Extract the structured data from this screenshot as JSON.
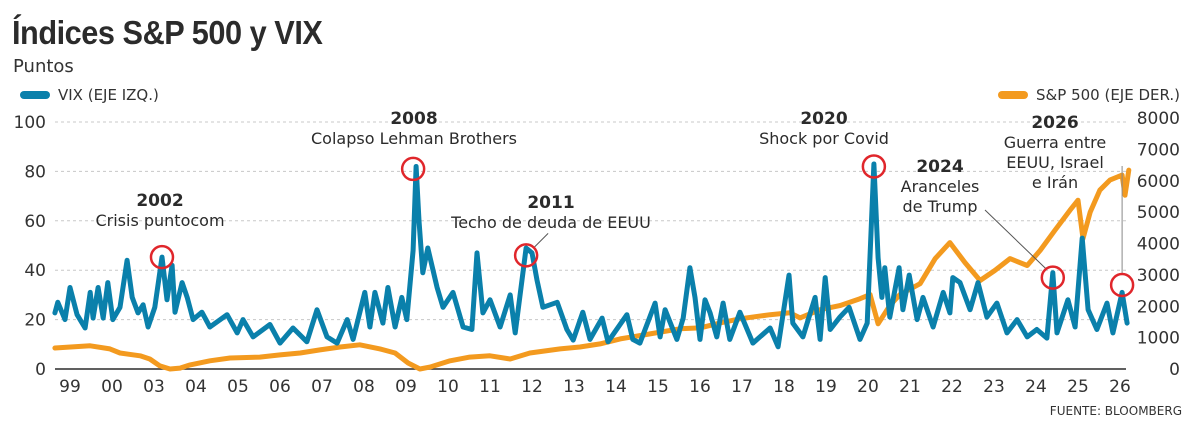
{
  "title": "Índices S&P 500 y VIX",
  "subtitle": "Puntos",
  "source": "FUENTE: BLOOMBERG",
  "colors": {
    "vix": "#0a80ab",
    "sp500": "#f39a1f",
    "highlight": "#e0262b",
    "grid": "#c8c8c8",
    "axis": "#2b2b2b"
  },
  "chart_data": {
    "type": "line",
    "x_tick_labels": [
      "99",
      "00",
      "03",
      "04",
      "05",
      "06",
      "07",
      "08",
      "09",
      "10",
      "11",
      "12",
      "13",
      "14",
      "15",
      "16",
      "17",
      "18",
      "19",
      "20",
      "21",
      "22",
      "23",
      "24",
      "25",
      "26"
    ],
    "y_left": {
      "label": "VIX (EJE IZQ.)",
      "range": [
        0,
        100
      ],
      "ticks": [
        0,
        20,
        40,
        60,
        80,
        100
      ]
    },
    "y_right": {
      "label": "S&P 500  (EJE DER.)",
      "range": [
        0,
        8000
      ],
      "ticks": [
        0,
        1000,
        2000,
        3000,
        4000,
        5000,
        6000,
        7000,
        8000
      ]
    },
    "grid": true,
    "legend": [
      "top-left",
      "top-right"
    ],
    "series": [
      {
        "name": "VIX (EJE IZQ.)",
        "axis": "left",
        "color": "#0a80ab",
        "points": [
          [
            2000.64,
            22.7
          ],
          [
            2000.71,
            27
          ],
          [
            2000.88,
            20
          ],
          [
            2001.0,
            33
          ],
          [
            2001.17,
            22
          ],
          [
            2001.36,
            16.6
          ],
          [
            2001.48,
            31
          ],
          [
            2001.55,
            20.6
          ],
          [
            2001.67,
            33
          ],
          [
            2001.79,
            20.6
          ],
          [
            2001.9,
            35
          ],
          [
            2002.02,
            20
          ],
          [
            2002.19,
            25
          ],
          [
            2002.36,
            44
          ],
          [
            2002.48,
            29
          ],
          [
            2002.62,
            22.7
          ],
          [
            2002.74,
            26
          ],
          [
            2002.86,
            17
          ],
          [
            2003.02,
            25
          ],
          [
            2003.19,
            45.3
          ],
          [
            2003.31,
            28
          ],
          [
            2003.43,
            42
          ],
          [
            2003.5,
            23
          ],
          [
            2003.67,
            35
          ],
          [
            2003.79,
            29
          ],
          [
            2003.93,
            20
          ],
          [
            2004.14,
            23
          ],
          [
            2004.33,
            17
          ],
          [
            2004.74,
            22
          ],
          [
            2004.98,
            14.6
          ],
          [
            2005.12,
            20
          ],
          [
            2005.36,
            13
          ],
          [
            2005.76,
            18
          ],
          [
            2006.0,
            10.5
          ],
          [
            2006.31,
            16.6
          ],
          [
            2006.64,
            11
          ],
          [
            2006.88,
            24
          ],
          [
            2007.12,
            13
          ],
          [
            2007.36,
            10.5
          ],
          [
            2007.6,
            20
          ],
          [
            2007.74,
            12
          ],
          [
            2008.02,
            31
          ],
          [
            2008.14,
            17
          ],
          [
            2008.26,
            31
          ],
          [
            2008.45,
            18.6
          ],
          [
            2008.57,
            33
          ],
          [
            2008.74,
            17
          ],
          [
            2008.9,
            29
          ],
          [
            2009.02,
            20
          ],
          [
            2009.17,
            48
          ],
          [
            2009.24,
            82
          ],
          [
            2009.31,
            60
          ],
          [
            2009.4,
            39
          ],
          [
            2009.52,
            49
          ],
          [
            2009.74,
            33
          ],
          [
            2009.88,
            25
          ],
          [
            2010.12,
            31
          ],
          [
            2010.36,
            17
          ],
          [
            2010.57,
            16
          ],
          [
            2010.69,
            47
          ],
          [
            2010.83,
            22.7
          ],
          [
            2011.0,
            28
          ],
          [
            2011.24,
            17
          ],
          [
            2011.48,
            30
          ],
          [
            2011.6,
            14.6
          ],
          [
            2011.86,
            49
          ],
          [
            2012.0,
            47
          ],
          [
            2012.12,
            36
          ],
          [
            2012.26,
            25
          ],
          [
            2012.6,
            27
          ],
          [
            2012.83,
            16
          ],
          [
            2012.98,
            11.7
          ],
          [
            2013.21,
            23
          ],
          [
            2013.38,
            12
          ],
          [
            2013.67,
            20.6
          ],
          [
            2013.81,
            11
          ],
          [
            2014.26,
            22
          ],
          [
            2014.4,
            12
          ],
          [
            2014.57,
            10.5
          ],
          [
            2014.93,
            26.7
          ],
          [
            2015.05,
            13
          ],
          [
            2015.17,
            24
          ],
          [
            2015.45,
            12
          ],
          [
            2015.6,
            20.6
          ],
          [
            2015.76,
            41
          ],
          [
            2015.88,
            29
          ],
          [
            2016.0,
            12
          ],
          [
            2016.12,
            28
          ],
          [
            2016.24,
            22.7
          ],
          [
            2016.4,
            13
          ],
          [
            2016.55,
            26.7
          ],
          [
            2016.71,
            12
          ],
          [
            2016.95,
            23
          ],
          [
            2017.26,
            10.5
          ],
          [
            2017.67,
            16.6
          ],
          [
            2017.86,
            9
          ],
          [
            2018.12,
            38
          ],
          [
            2018.21,
            18.6
          ],
          [
            2018.45,
            13
          ],
          [
            2018.74,
            29
          ],
          [
            2018.86,
            12
          ],
          [
            2018.98,
            37
          ],
          [
            2019.1,
            16
          ],
          [
            2019.33,
            21
          ],
          [
            2019.55,
            25
          ],
          [
            2019.81,
            12
          ],
          [
            2019.98,
            18.6
          ],
          [
            2020.14,
            83
          ],
          [
            2020.24,
            45
          ],
          [
            2020.33,
            29
          ],
          [
            2020.4,
            41
          ],
          [
            2020.52,
            21
          ],
          [
            2020.74,
            41
          ],
          [
            2020.83,
            24
          ],
          [
            2020.98,
            38
          ],
          [
            2021.17,
            20
          ],
          [
            2021.31,
            29
          ],
          [
            2021.55,
            17
          ],
          [
            2021.79,
            31
          ],
          [
            2021.95,
            22.7
          ],
          [
            2022.02,
            37
          ],
          [
            2022.19,
            35
          ],
          [
            2022.43,
            24
          ],
          [
            2022.62,
            35
          ],
          [
            2022.83,
            21
          ],
          [
            2023.07,
            26.7
          ],
          [
            2023.31,
            14.6
          ],
          [
            2023.55,
            20
          ],
          [
            2023.79,
            13
          ],
          [
            2024.02,
            16
          ],
          [
            2024.26,
            12.5
          ],
          [
            2024.4,
            39
          ],
          [
            2024.5,
            14.6
          ],
          [
            2024.76,
            28
          ],
          [
            2024.93,
            17
          ],
          [
            2025.1,
            53
          ],
          [
            2025.24,
            24
          ],
          [
            2025.45,
            16
          ],
          [
            2025.69,
            26.7
          ],
          [
            2025.83,
            14.6
          ],
          [
            2026.05,
            31
          ],
          [
            2026.17,
            18.6
          ]
        ]
      },
      {
        "name": "S&P 500  (EJE DER.)",
        "axis": "right",
        "color": "#f39a1f",
        "points": [
          [
            2000.64,
            670
          ],
          [
            2001.48,
            740
          ],
          [
            2001.95,
            640
          ],
          [
            2002.19,
            510
          ],
          [
            2002.67,
            420
          ],
          [
            2002.9,
            320
          ],
          [
            2003.14,
            100
          ],
          [
            2003.38,
            0
          ],
          [
            2003.62,
            30
          ],
          [
            2003.86,
            130
          ],
          [
            2004.33,
            260
          ],
          [
            2004.81,
            350
          ],
          [
            2005.52,
            380
          ],
          [
            2006.0,
            450
          ],
          [
            2006.48,
            510
          ],
          [
            2006.95,
            610
          ],
          [
            2007.43,
            700
          ],
          [
            2007.9,
            770
          ],
          [
            2008.38,
            640
          ],
          [
            2008.74,
            510
          ],
          [
            2009.05,
            190
          ],
          [
            2009.33,
            0
          ],
          [
            2009.57,
            60
          ],
          [
            2010.05,
            260
          ],
          [
            2010.52,
            380
          ],
          [
            2011.0,
            420
          ],
          [
            2011.48,
            320
          ],
          [
            2011.95,
            510
          ],
          [
            2012.67,
            640
          ],
          [
            2013.14,
            700
          ],
          [
            2013.62,
            800
          ],
          [
            2014.1,
            960
          ],
          [
            2014.81,
            1120
          ],
          [
            2015.52,
            1280
          ],
          [
            2016.0,
            1310
          ],
          [
            2016.48,
            1470
          ],
          [
            2016.95,
            1600
          ],
          [
            2017.67,
            1730
          ],
          [
            2018.14,
            1790
          ],
          [
            2018.38,
            1630
          ],
          [
            2018.86,
            1890
          ],
          [
            2019.33,
            2020
          ],
          [
            2019.81,
            2240
          ],
          [
            2020.05,
            2370
          ],
          [
            2020.24,
            1440
          ],
          [
            2020.52,
            2020
          ],
          [
            2020.76,
            2370
          ],
          [
            2021.24,
            2720
          ],
          [
            2021.6,
            3520
          ],
          [
            2021.95,
            4030
          ],
          [
            2022.31,
            3390
          ],
          [
            2022.67,
            2820
          ],
          [
            2023.02,
            3140
          ],
          [
            2023.38,
            3520
          ],
          [
            2023.79,
            3300
          ],
          [
            2024.1,
            3780
          ],
          [
            2024.45,
            4420
          ],
          [
            2024.81,
            5060
          ],
          [
            2025.0,
            5380
          ],
          [
            2025.12,
            4160
          ],
          [
            2025.29,
            5000
          ],
          [
            2025.52,
            5700
          ],
          [
            2025.76,
            6020
          ],
          [
            2026.05,
            6180
          ],
          [
            2026.12,
            5540
          ],
          [
            2026.21,
            6340
          ]
        ]
      }
    ],
    "annotations": [
      {
        "year": "2002",
        "lines": [
          "Crisis puntocom"
        ],
        "point": [
          2003.19,
          45.3
        ]
      },
      {
        "year": "2008",
        "lines": [
          "Colapso Lehman Brothers"
        ],
        "point": [
          2009.17,
          81
        ]
      },
      {
        "year": "2011",
        "lines": [
          "Techo de deuda de EEUU"
        ],
        "point": [
          2011.86,
          46
        ]
      },
      {
        "year": "2020",
        "lines": [
          "Shock por Covid"
        ],
        "point": [
          2020.14,
          82
        ]
      },
      {
        "year": "2024",
        "lines": [
          "Aranceles",
          "de Trump"
        ],
        "point": [
          2024.4,
          37
        ]
      },
      {
        "year": "2026",
        "lines": [
          "Guerra entre",
          "EEUU, Israel",
          "e Irán"
        ],
        "point": [
          2026.05,
          34
        ]
      }
    ]
  }
}
